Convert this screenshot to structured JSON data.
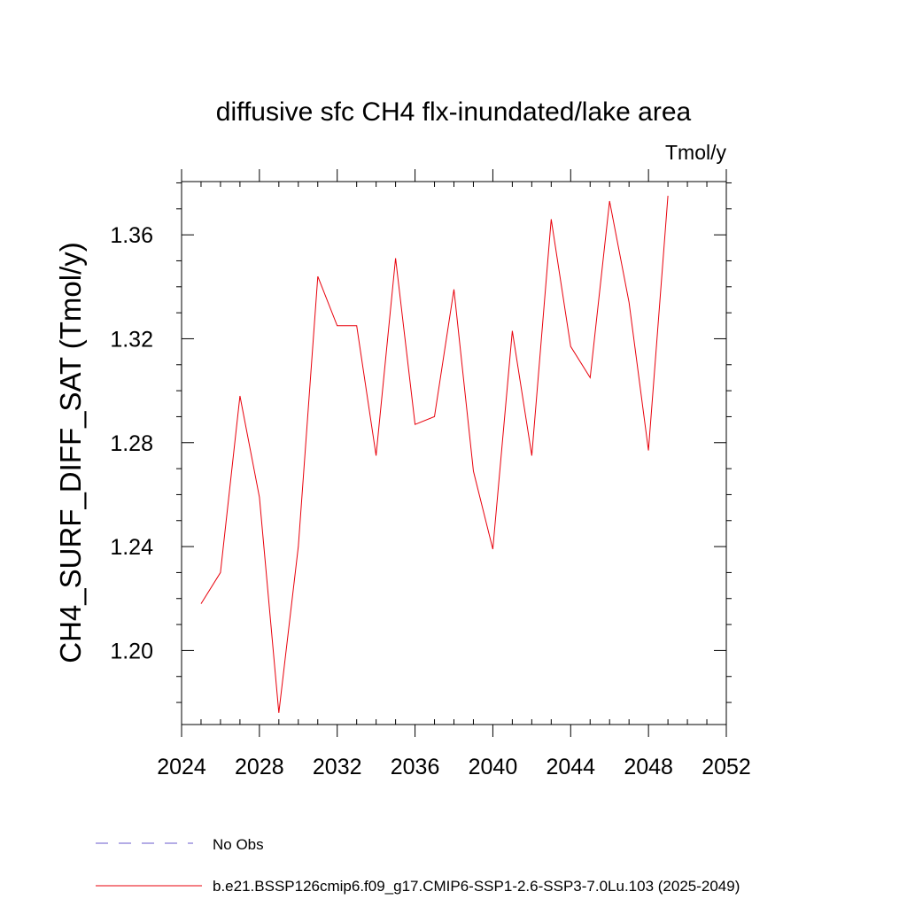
{
  "chart_data": {
    "type": "line",
    "title": "diffusive sfc CH4 flx-inundated/lake area",
    "units": "Tmol/y",
    "ylabel": "CH4_SURF_DIFF_SAT  (Tmol/y)",
    "xlabel": "",
    "xlim": [
      2024,
      2052
    ],
    "ylim": [
      1.1715,
      1.3805
    ],
    "x_ticks": [
      2024,
      2028,
      2032,
      2036,
      2040,
      2044,
      2048,
      2052
    ],
    "x_tick_labels": [
      "2024",
      "2028",
      "2032",
      "2036",
      "2040",
      "2044",
      "2048",
      "2052"
    ],
    "y_ticks": [
      1.2,
      1.24,
      1.28,
      1.32,
      1.36
    ],
    "y_tick_labels": [
      "1.20",
      "1.24",
      "1.28",
      "1.32",
      "1.36"
    ],
    "grid": false,
    "legend_position": "bottom",
    "legend": [
      {
        "label": "No Obs",
        "color": "#6a5acd",
        "dash": "dashed"
      },
      {
        "label": "b.e21.BSSP126cmip6.f09_g17.CMIP6-SSP1-2.6-SSP3-7.0Lu.103 (2025-2049)",
        "color": "#e8000b",
        "dash": "solid"
      }
    ],
    "series": [
      {
        "name": "b.e21.BSSP126cmip6.f09_g17.CMIP6-SSP1-2.6-SSP3-7.0Lu.103 (2025-2049)",
        "color": "#e8000b",
        "x": [
          2025,
          2026,
          2027,
          2028,
          2029,
          2030,
          2031,
          2032,
          2033,
          2034,
          2035,
          2036,
          2037,
          2038,
          2039,
          2040,
          2041,
          2042,
          2043,
          2044,
          2045,
          2046,
          2047,
          2048,
          2049
        ],
        "y": [
          1.218,
          1.23,
          1.298,
          1.259,
          1.176,
          1.24,
          1.344,
          1.325,
          1.325,
          1.275,
          1.351,
          1.287,
          1.29,
          1.339,
          1.269,
          1.239,
          1.323,
          1.275,
          1.366,
          1.317,
          1.305,
          1.373,
          1.334,
          1.277,
          1.375
        ]
      }
    ]
  }
}
